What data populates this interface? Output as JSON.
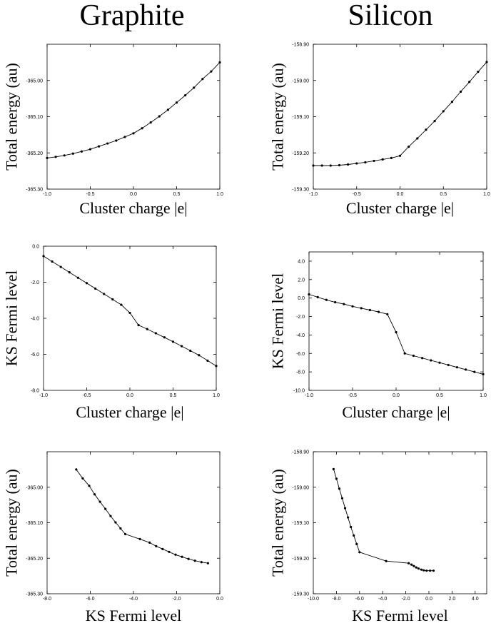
{
  "columns": [
    "Graphite",
    "Silicon"
  ],
  "chart_data": [
    {
      "type": "line",
      "column": "Graphite",
      "xlabel": "Cluster charge |e|",
      "ylabel": "Total energy (au)",
      "xlim": [
        -1.0,
        1.0
      ],
      "ylim": [
        -365.3,
        -364.9
      ],
      "xticks": [
        "-1.0",
        "-0.5",
        "0.0",
        "0.5",
        "1.0"
      ],
      "yticks": [
        "-365.30",
        "-365.20",
        "-365.10",
        "-365.00"
      ],
      "x": [
        -1.0,
        -0.9,
        -0.8,
        -0.7,
        -0.6,
        -0.5,
        -0.4,
        -0.3,
        -0.2,
        -0.1,
        0.0,
        0.1,
        0.2,
        0.3,
        0.4,
        0.5,
        0.6,
        0.7,
        0.8,
        0.9,
        1.0
      ],
      "y": [
        -365.214,
        -365.211,
        -365.207,
        -365.202,
        -365.196,
        -365.19,
        -365.182,
        -365.174,
        -365.166,
        -365.156,
        -365.146,
        -365.132,
        -365.116,
        -365.099,
        -365.081,
        -365.061,
        -365.041,
        -365.02,
        -364.996,
        -364.975,
        -364.95
      ]
    },
    {
      "type": "line",
      "column": "Silicon",
      "xlabel": "Cluster charge |e|",
      "ylabel": "Total energy (au)",
      "xlim": [
        -1.0,
        1.0
      ],
      "ylim": [
        -159.3,
        -158.9
      ],
      "xticks": [
        "-1.0",
        "-0.5",
        "0.0",
        "0.5",
        "1.0"
      ],
      "yticks": [
        "-159.30",
        "-159.20",
        "-159.10",
        "-159.00",
        "-158.90"
      ],
      "x": [
        -1.0,
        -0.9,
        -0.8,
        -0.7,
        -0.6,
        -0.5,
        -0.4,
        -0.3,
        -0.2,
        -0.1,
        0.0,
        0.1,
        0.2,
        0.3,
        0.4,
        0.5,
        0.6,
        0.7,
        0.8,
        0.9,
        1.0
      ],
      "y": [
        -159.235,
        -159.235,
        -159.235,
        -159.234,
        -159.232,
        -159.229,
        -159.226,
        -159.222,
        -159.218,
        -159.214,
        -159.208,
        -159.183,
        -159.16,
        -159.136,
        -159.112,
        -159.085,
        -159.059,
        -159.031,
        -159.004,
        -158.976,
        -158.949
      ]
    },
    {
      "type": "line",
      "column": "Graphite",
      "xlabel": "Cluster charge |e|",
      "ylabel": "KS Fermi level",
      "xlim": [
        -1.0,
        1.0
      ],
      "ylim": [
        -8.0,
        0.0
      ],
      "xticks": [
        "-1.0",
        "-0.5",
        "0.0",
        "0.5",
        "1.0"
      ],
      "yticks": [
        "-8.0",
        "-6.0",
        "-4.0",
        "-2.0",
        "0.0"
      ],
      "x": [
        -1.0,
        -0.9,
        -0.8,
        -0.7,
        -0.6,
        -0.5,
        -0.4,
        -0.3,
        -0.2,
        -0.1,
        0.0,
        0.1,
        0.2,
        0.3,
        0.4,
        0.5,
        0.6,
        0.7,
        0.8,
        0.9,
        1.0
      ],
      "y": [
        -0.55,
        -0.85,
        -1.15,
        -1.45,
        -1.75,
        -2.05,
        -2.35,
        -2.65,
        -2.95,
        -3.25,
        -3.7,
        -4.38,
        -4.6,
        -4.83,
        -5.06,
        -5.3,
        -5.55,
        -5.8,
        -6.05,
        -6.35,
        -6.65
      ]
    },
    {
      "type": "line",
      "column": "Silicon",
      "xlabel": "Cluster charge |e|",
      "ylabel": "KS Fermi level",
      "xlim": [
        -1.0,
        1.0
      ],
      "ylim": [
        -10.0,
        5.0
      ],
      "xticks": [
        "-1.0",
        "-0.5",
        "0.0",
        "0.5",
        "1.0"
      ],
      "yticks": [
        "-10.0",
        "-8.0",
        "-6.0",
        "-4.0",
        "-2.0",
        "0.0",
        "2.0",
        "4.0"
      ],
      "x": [
        -1.0,
        -0.9,
        -0.8,
        -0.7,
        -0.6,
        -0.5,
        -0.4,
        -0.3,
        -0.2,
        -0.1,
        0.0,
        0.1,
        0.2,
        0.3,
        0.4,
        0.5,
        0.6,
        0.7,
        0.8,
        0.9,
        1.0
      ],
      "y": [
        0.4,
        0.1,
        -0.2,
        -0.45,
        -0.65,
        -0.9,
        -1.1,
        -1.3,
        -1.5,
        -1.75,
        -3.7,
        -6.0,
        -6.25,
        -6.5,
        -6.75,
        -7.0,
        -7.25,
        -7.5,
        -7.75,
        -8.0,
        -8.25
      ]
    },
    {
      "type": "line",
      "column": "Graphite",
      "xlabel": "KS Fermi level",
      "ylabel": "Total energy (au)",
      "xlim": [
        -8.0,
        0.0
      ],
      "ylim": [
        -365.3,
        -364.9
      ],
      "xticks": [
        "-8.0",
        "-6.0",
        "-4.0",
        "-2.0",
        "0.0"
      ],
      "yticks": [
        "-365.30",
        "-365.20",
        "-365.10",
        "-365.00"
      ],
      "x": [
        -6.65,
        -6.35,
        -6.05,
        -5.8,
        -5.55,
        -5.3,
        -5.06,
        -4.83,
        -4.6,
        -4.38,
        -3.7,
        -3.25,
        -2.95,
        -2.65,
        -2.35,
        -2.05,
        -1.75,
        -1.45,
        -1.15,
        -0.85,
        -0.55
      ],
      "y": [
        -364.95,
        -364.975,
        -364.996,
        -365.02,
        -365.041,
        -365.061,
        -365.081,
        -365.099,
        -365.116,
        -365.132,
        -365.146,
        -365.156,
        -365.166,
        -365.174,
        -365.182,
        -365.19,
        -365.196,
        -365.202,
        -365.207,
        -365.211,
        -365.214
      ]
    },
    {
      "type": "line",
      "column": "Silicon",
      "xlabel": "KS Fermi level",
      "ylabel": "Total energy (au)",
      "xlim": [
        -10.0,
        5.0
      ],
      "ylim": [
        -159.3,
        -158.9
      ],
      "xticks": [
        "-10.0",
        "-8.0",
        "-6.0",
        "-4.0",
        "-2.0",
        "0.0",
        "2.0",
        "4.0"
      ],
      "yticks": [
        "-159.30",
        "-159.20",
        "-159.10",
        "-159.00",
        "-158.90"
      ],
      "x": [
        -8.25,
        -8.0,
        -7.75,
        -7.5,
        -7.25,
        -7.0,
        -6.75,
        -6.5,
        -6.25,
        -6.0,
        -3.7,
        -1.75,
        -1.5,
        -1.3,
        -1.1,
        -0.9,
        -0.65,
        -0.45,
        -0.2,
        0.1,
        0.4
      ],
      "y": [
        -158.949,
        -158.976,
        -159.004,
        -159.031,
        -159.059,
        -159.085,
        -159.112,
        -159.136,
        -159.16,
        -159.183,
        -159.208,
        -159.214,
        -159.218,
        -159.222,
        -159.226,
        -159.229,
        -159.232,
        -159.234,
        -159.235,
        -159.235,
        -159.235
      ]
    }
  ]
}
